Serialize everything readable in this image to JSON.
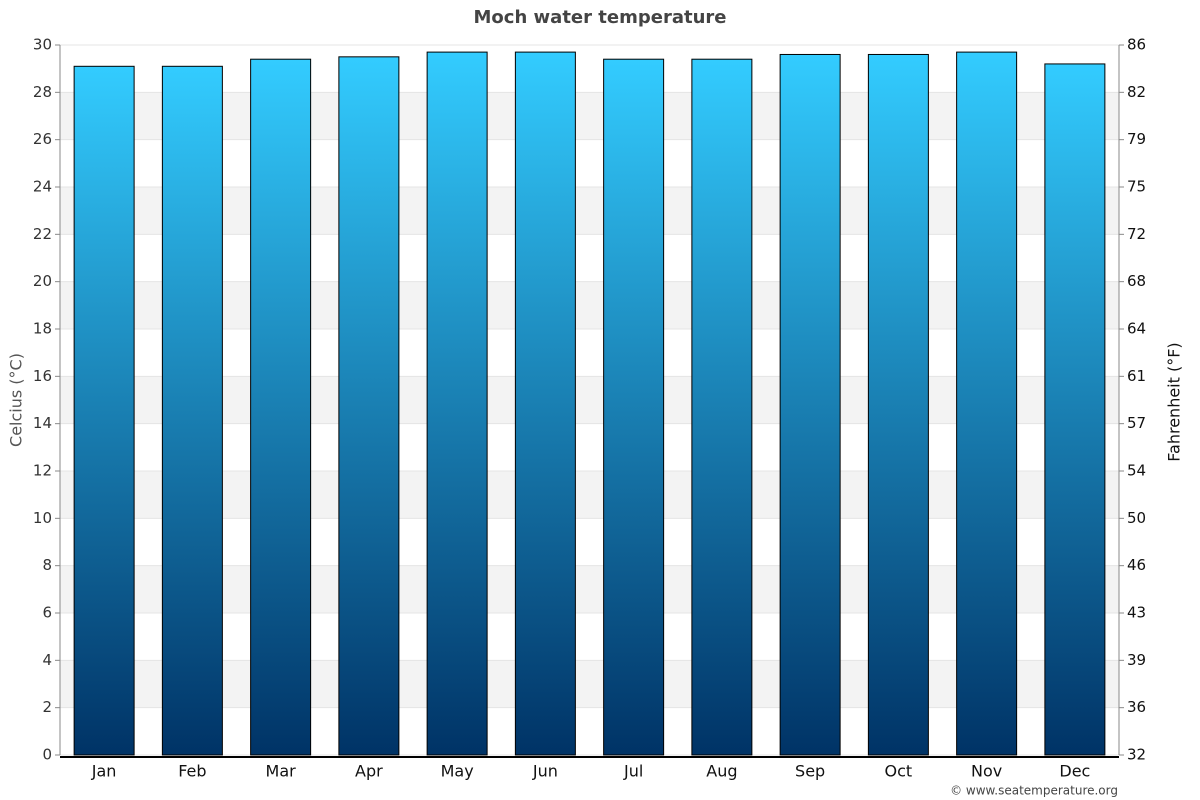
{
  "chart_data": {
    "type": "bar",
    "title": "Moch water temperature",
    "y_label": "Celcius (°C)",
    "y2_label": "Fahrenheit (°F)",
    "credit": "© www.seatemperature.org",
    "categories": [
      "Jan",
      "Feb",
      "Mar",
      "Apr",
      "May",
      "Jun",
      "Jul",
      "Aug",
      "Sep",
      "Oct",
      "Nov",
      "Dec"
    ],
    "values": [
      29.1,
      29.1,
      29.4,
      29.5,
      29.7,
      29.7,
      29.4,
      29.4,
      29.6,
      29.6,
      29.7,
      29.2
    ],
    "color": [
      "#33ccff",
      "#003366"
    ],
    "ylim": [
      0,
      30
    ],
    "yticks": [
      0,
      2,
      4,
      6,
      8,
      10,
      12,
      14,
      16,
      18,
      20,
      22,
      24,
      26,
      28,
      30
    ],
    "y2lim": [
      32,
      86
    ],
    "y2ticks": [
      32,
      {
        "value": 35.6,
        "label": "36"
      },
      {
        "value": 39.2,
        "label": "39"
      },
      {
        "value": 42.8,
        "label": "43"
      },
      {
        "value": 46.4,
        "label": "46"
      },
      50,
      {
        "value": 53.6,
        "label": "54"
      },
      {
        "value": 57.2,
        "label": "57"
      },
      {
        "value": 60.8,
        "label": "61"
      },
      {
        "value": 64.4,
        "label": "64"
      },
      68,
      {
        "value": 71.6,
        "label": "72"
      },
      {
        "value": 75.2,
        "label": "75"
      },
      {
        "value": 78.8,
        "label": "79"
      },
      {
        "value": 82.4,
        "label": "82"
      },
      86
    ],
    "grid": true
  }
}
